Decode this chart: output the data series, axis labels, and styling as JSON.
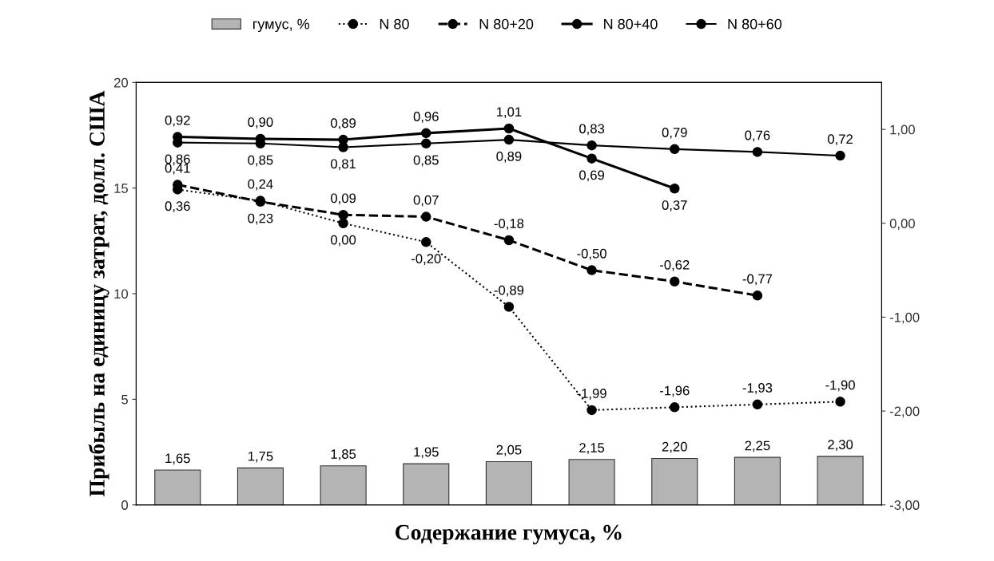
{
  "chart_data": {
    "type": "bar",
    "xlabel": "Содержание гумуса, %",
    "ylabel": "Прибыль на единицу затрат, долл. США",
    "categories": [
      null,
      null,
      null,
      null,
      null,
      null,
      null,
      null,
      null
    ],
    "ylim": [
      0,
      20
    ],
    "yticks": [
      0,
      5,
      10,
      15,
      20
    ],
    "y2lim": [
      -3,
      1.5
    ],
    "y2ticks": [
      {
        "value": 1,
        "label": "1,00"
      },
      {
        "value": 0,
        "label": "0,00"
      },
      {
        "value": -1,
        "label": "-1,00"
      },
      {
        "value": -2,
        "label": "-2,00"
      },
      {
        "value": -3,
        "label": "-3,00"
      }
    ],
    "legend": "top",
    "grid": false,
    "marker": "circle",
    "series": [
      {
        "name": "гумус, %",
        "color": "#b4b4b4",
        "values": [
          1.65,
          1.75,
          1.85,
          1.95,
          2.05,
          2.15,
          2.2,
          2.25,
          2.3
        ],
        "value_labels": [
          "1,65",
          "1,75",
          "1,85",
          "1,95",
          "2,05",
          "2,15",
          "2,20",
          "2,25",
          "2,30"
        ]
      },
      {
        "name": "N 80",
        "type": "line",
        "axis": "y2",
        "line_style": "dotted",
        "color": "#000000",
        "values": [
          0.36,
          0.24,
          0.0,
          -0.2,
          -0.89,
          -1.99,
          -1.96,
          -1.93,
          -1.9
        ],
        "value_labels": [
          "0,36",
          "0,24",
          "0,00",
          "-0,20",
          "-0,89",
          "-1,99",
          "-1,96",
          "-1,93",
          "-1,90"
        ]
      },
      {
        "name": "N 80+20",
        "type": "line",
        "axis": "y2",
        "line_style": "dashed",
        "color": "#000000",
        "values": [
          0.41,
          0.23,
          0.09,
          0.07,
          -0.18,
          -0.5,
          -0.62,
          -0.77,
          null
        ],
        "value_labels": [
          "0,41",
          "0,23",
          "0,09",
          "0,07",
          "-0,18",
          "-0,50",
          "-0,62",
          "-0,77",
          null
        ]
      },
      {
        "name": "N 80+40",
        "type": "line",
        "axis": "y2",
        "line_style": "solid",
        "color": "#000000",
        "values": [
          0.92,
          0.9,
          0.89,
          0.96,
          1.01,
          0.69,
          0.37,
          null,
          null
        ],
        "value_labels": [
          "0,92",
          "0,90",
          "0,89",
          "0,96",
          "1,01",
          "0,69",
          "0,37",
          null,
          null
        ]
      },
      {
        "name": "N 80+60",
        "type": "line",
        "axis": "y2",
        "line_style": "solid",
        "color": "#000000",
        "values": [
          0.86,
          0.85,
          0.81,
          0.85,
          0.89,
          0.83,
          0.79,
          0.76,
          0.72
        ],
        "value_labels": [
          "0,86",
          "0,85",
          "0,81",
          "0,85",
          "0,89",
          "0,83",
          "0,79",
          "0,76",
          "0,72"
        ]
      }
    ]
  }
}
